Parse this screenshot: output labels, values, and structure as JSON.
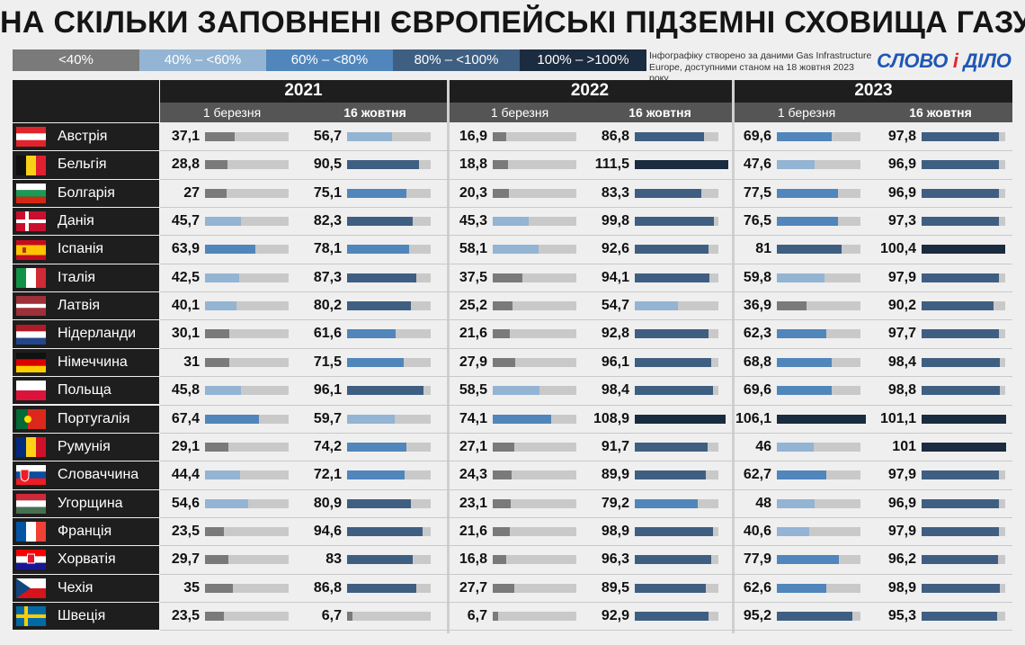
{
  "title": "НА СКІЛЬКИ ЗАПОВНЕНІ ЄВРОПЕЙСЬКІ ПІДЗЕМНІ СХОВИЩА ГАЗУ",
  "note": "Інфографіку створено за даними Gas Infrastructure Europe, доступними станом на 18 жовтня 2023 року",
  "brand": {
    "main": "СЛОВО",
    "i": "і",
    "rest": "ДІЛО"
  },
  "legend": [
    {
      "label": "<40%",
      "color": "#7a7a7a"
    },
    {
      "label": "40% – <60%",
      "color": "#93b4d3"
    },
    {
      "label": "60% – <80%",
      "color": "#5086bb"
    },
    {
      "label": "80% – <100%",
      "color": "#3f5f82"
    },
    {
      "label": "100% – >100%",
      "color": "#1b2b40"
    }
  ],
  "chart_data": {
    "type": "table",
    "years": [
      "2021",
      "2022",
      "2023"
    ],
    "columns": [
      "1 березня",
      "16 жовтня"
    ],
    "rows": [
      {
        "country": "Австрія",
        "values": [
          37.1,
          56.7,
          16.9,
          86.8,
          69.6,
          97.8
        ],
        "labels": [
          "37,1",
          "56,7",
          "16,9",
          "86,8",
          "69,6",
          "97,8"
        ]
      },
      {
        "country": "Бельгія",
        "values": [
          28.8,
          90.5,
          18.8,
          111.5,
          47.6,
          96.9
        ],
        "labels": [
          "28,8",
          "90,5",
          "18,8",
          "111,5",
          "47,6",
          "96,9"
        ]
      },
      {
        "country": "Болгарія",
        "values": [
          27,
          75.1,
          20.3,
          83.3,
          77.5,
          96.9
        ],
        "labels": [
          "27",
          "75,1",
          "20,3",
          "83,3",
          "77,5",
          "96,9"
        ]
      },
      {
        "country": "Данія",
        "values": [
          45.7,
          82.3,
          45.3,
          99.8,
          76.5,
          97.3
        ],
        "labels": [
          "45,7",
          "82,3",
          "45,3",
          "99,8",
          "76,5",
          "97,3"
        ]
      },
      {
        "country": "Іспанія",
        "values": [
          63.9,
          78.1,
          58.1,
          92.6,
          81,
          100.4
        ],
        "labels": [
          "63,9",
          "78,1",
          "58,1",
          "92,6",
          "81",
          "100,4"
        ]
      },
      {
        "country": "Італія",
        "values": [
          42.5,
          87.3,
          37.5,
          94.1,
          59.8,
          97.9
        ],
        "labels": [
          "42,5",
          "87,3",
          "37,5",
          "94,1",
          "59,8",
          "97,9"
        ]
      },
      {
        "country": "Латвія",
        "values": [
          40.1,
          80.2,
          25.2,
          54.7,
          36.9,
          90.2
        ],
        "labels": [
          "40,1",
          "80,2",
          "25,2",
          "54,7",
          "36,9",
          "90,2"
        ]
      },
      {
        "country": "Нідерланди",
        "values": [
          30.1,
          61.6,
          21.6,
          92.8,
          62.3,
          97.7
        ],
        "labels": [
          "30,1",
          "61,6",
          "21,6",
          "92,8",
          "62,3",
          "97,7"
        ]
      },
      {
        "country": "Німеччина",
        "values": [
          31,
          71.5,
          27.9,
          96.1,
          68.8,
          98.4
        ],
        "labels": [
          "31",
          "71,5",
          "27,9",
          "96,1",
          "68,8",
          "98,4"
        ]
      },
      {
        "country": "Польща",
        "values": [
          45.8,
          96.1,
          58.5,
          98.4,
          69.6,
          98.8
        ],
        "labels": [
          "45,8",
          "96,1",
          "58,5",
          "98,4",
          "69,6",
          "98,8"
        ]
      },
      {
        "country": "Португалія",
        "values": [
          67.4,
          59.7,
          74.1,
          108.9,
          106.1,
          101.1
        ],
        "labels": [
          "67,4",
          "59,7",
          "74,1",
          "108,9",
          "106,1",
          "101,1"
        ]
      },
      {
        "country": "Румунія",
        "values": [
          29.1,
          74.2,
          27.1,
          91.7,
          46,
          101
        ],
        "labels": [
          "29,1",
          "74,2",
          "27,1",
          "91,7",
          "46",
          "101"
        ]
      },
      {
        "country": "Словаччина",
        "values": [
          44.4,
          72.1,
          24.3,
          89.9,
          62.7,
          97.9
        ],
        "labels": [
          "44,4",
          "72,1",
          "24,3",
          "89,9",
          "62,7",
          "97,9"
        ]
      },
      {
        "country": "Угорщина",
        "values": [
          54.6,
          80.9,
          23.1,
          79.2,
          48,
          96.9
        ],
        "labels": [
          "54,6",
          "80,9",
          "23,1",
          "79,2",
          "48",
          "96,9"
        ]
      },
      {
        "country": "Франція",
        "values": [
          23.5,
          94.6,
          21.6,
          98.9,
          40.6,
          97.9
        ],
        "labels": [
          "23,5",
          "94,6",
          "21,6",
          "98,9",
          "40,6",
          "97,9"
        ]
      },
      {
        "country": "Хорватія",
        "values": [
          29.7,
          83,
          16.8,
          96.3,
          77.9,
          96.2
        ],
        "labels": [
          "29,7",
          "83",
          "16,8",
          "96,3",
          "77,9",
          "96,2"
        ]
      },
      {
        "country": "Чехія",
        "values": [
          35,
          86.8,
          27.7,
          89.5,
          62.6,
          98.9
        ],
        "labels": [
          "35",
          "86,8",
          "27,7",
          "89,5",
          "62,6",
          "98,9"
        ]
      },
      {
        "country": "Швеція",
        "values": [
          23.5,
          6.7,
          6.7,
          92.9,
          95.2,
          95.3
        ],
        "labels": [
          "23,5",
          "6,7",
          "6,7",
          "92,9",
          "95,2",
          "95,3"
        ]
      }
    ]
  }
}
